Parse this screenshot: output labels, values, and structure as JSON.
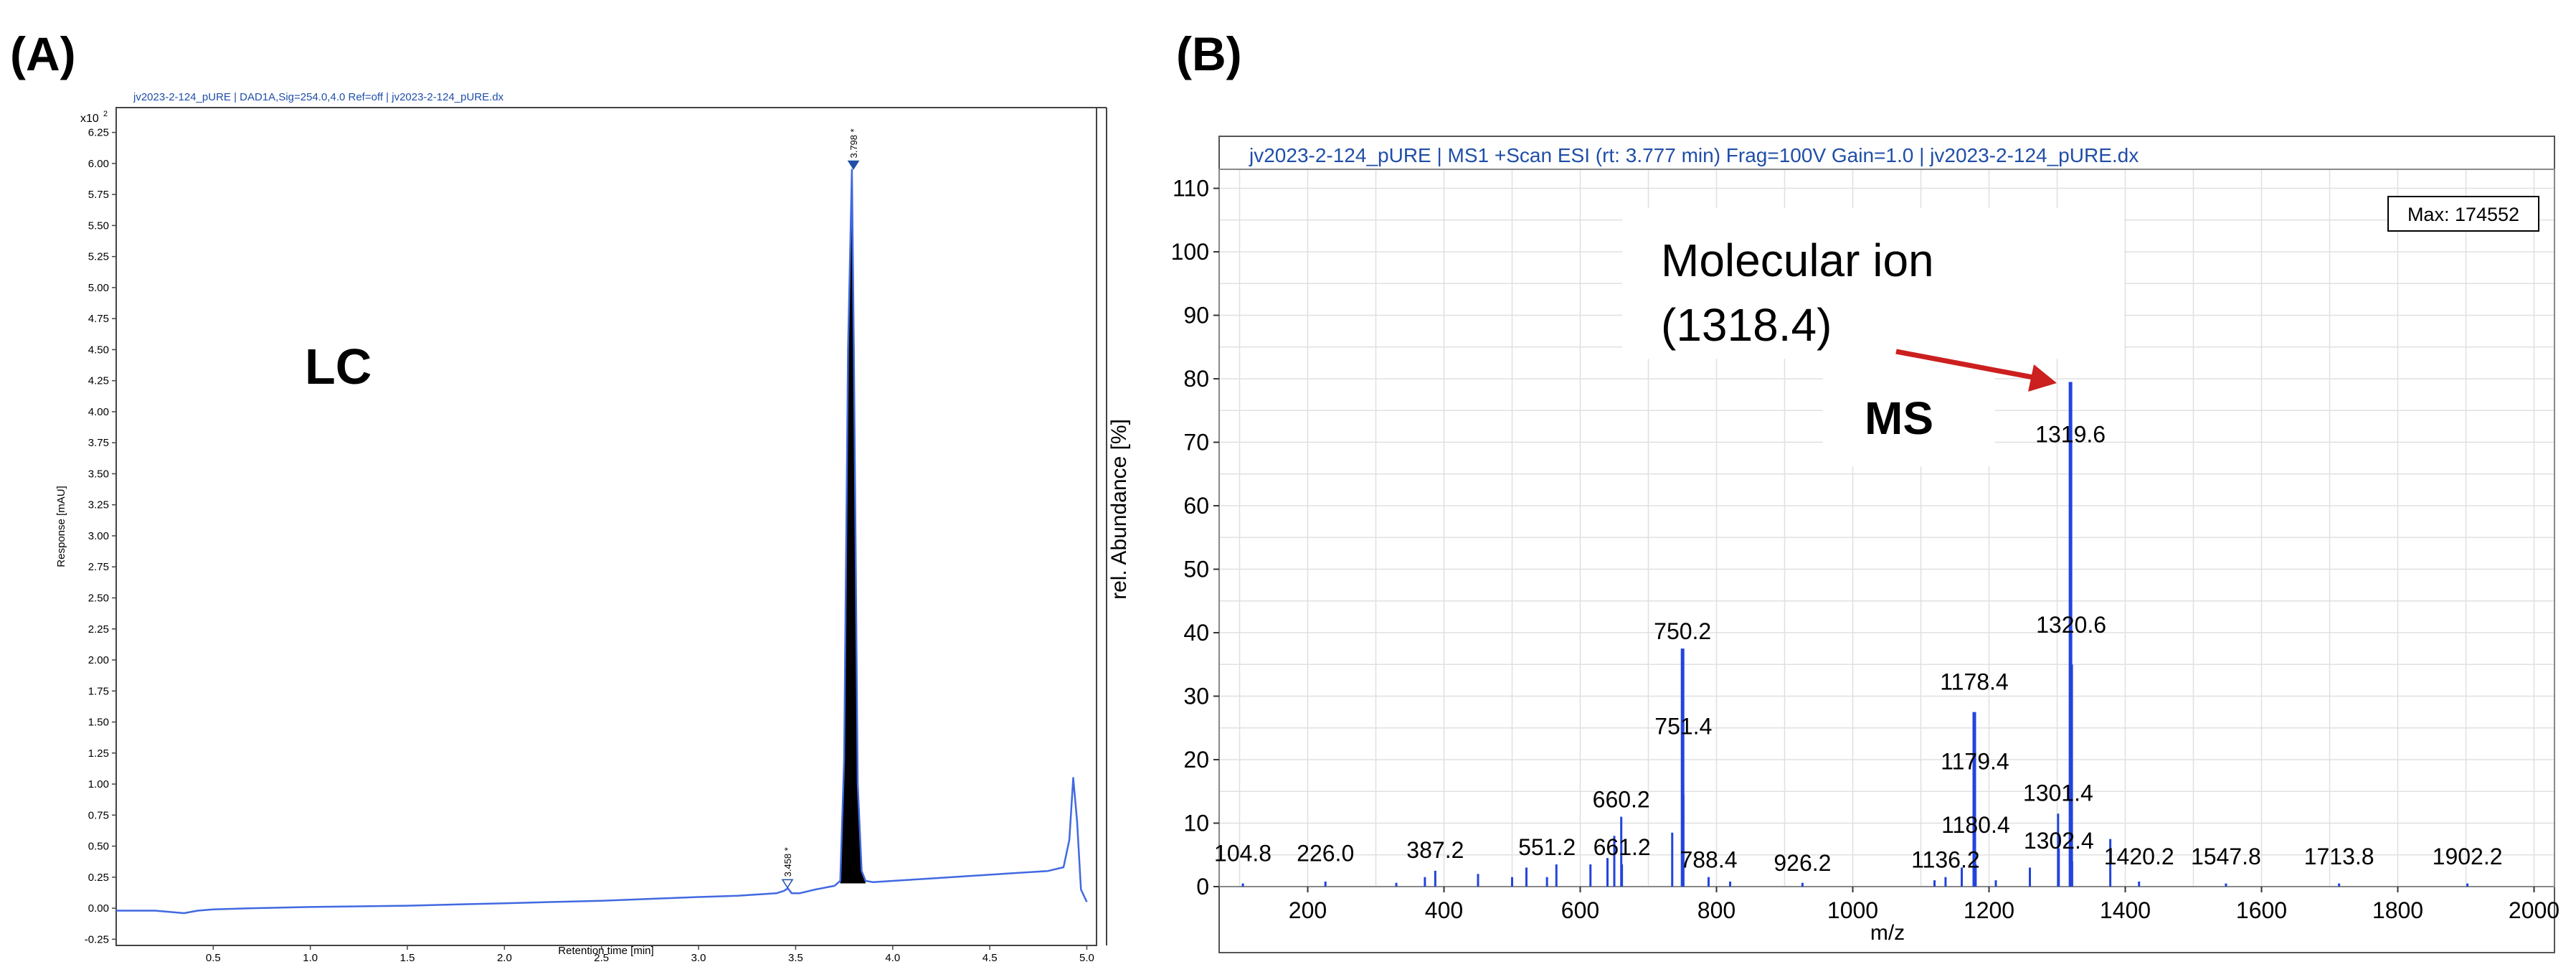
{
  "panels": {
    "a": {
      "label": "(A)",
      "header": "jv2023-2-124_pURE | DAD1A,Sig=254.0,4.0 Ref=off | jv2023-2-124_pURE.dx",
      "multiplier": "x10",
      "multiplier_exp": "2",
      "technique": "LC",
      "peak_labels": [
        "3.798 *",
        "3.458 *"
      ]
    },
    "b": {
      "label": "(B)",
      "header": "jv2023-2-124_pURE | MS1 +Scan ESI (rt: 3.777 min) Frag=100V Gain=1.0 | jv2023-2-124_pURE.dx",
      "max_label": "Max: 174552",
      "annotation_line1": "Molecular ion",
      "annotation_line2": "(1318.4)",
      "technique": "MS"
    }
  },
  "colors": {
    "lc_trace": "#4169e1",
    "peak_fill": "#000000",
    "header_text": "#1f4ea8",
    "ms_bars": "#2244dd",
    "arrow": "#cc1f1f",
    "grid": "#e0e0e0"
  },
  "chart_data": [
    {
      "type": "line",
      "title": "",
      "xlabel": "Retention time [min]",
      "ylabel": "Response [mAU]",
      "xlim": [
        0,
        5.05
      ],
      "ylim": [
        -0.3,
        6.45
      ],
      "grid": false,
      "x_ticks": [
        0.5,
        1.0,
        1.5,
        2.0,
        2.5,
        3.0,
        3.5,
        4.0,
        4.5,
        5.0
      ],
      "x_tick_labels": [
        "0.5",
        "1.0",
        "1.5",
        "2.0",
        "2.5",
        "3.0",
        "3.5",
        "4.0",
        "4.5",
        "5.0"
      ],
      "y_ticks": [
        -0.25,
        0,
        0.25,
        0.5,
        0.75,
        1.0,
        1.25,
        1.5,
        1.75,
        2.0,
        2.25,
        2.5,
        2.75,
        3.0,
        3.25,
        3.5,
        3.75,
        4.0,
        4.25,
        4.5,
        4.75,
        5.0,
        5.25,
        5.5,
        5.75,
        6.0,
        6.25
      ],
      "y_tick_labels": [
        "-0.25",
        "0.00",
        "0.25",
        "0.50",
        "0.75",
        "1.00",
        "1.25",
        "1.50",
        "1.75",
        "2.00",
        "2.25",
        "2.50",
        "2.75",
        "3.00",
        "3.25",
        "3.50",
        "3.75",
        "4.00",
        "4.25",
        "4.50",
        "4.75",
        "5.00",
        "5.25",
        "5.50",
        "5.75",
        "6.00",
        "6.25"
      ],
      "series": [
        {
          "x": [
            0.0,
            0.2,
            0.35,
            0.42,
            0.5,
            0.7,
            1.0,
            1.5,
            2.0,
            2.5,
            3.0,
            3.2,
            3.4,
            3.44,
            3.46,
            3.48,
            3.52,
            3.6,
            3.7,
            3.73,
            3.75,
            3.77,
            3.79,
            3.8,
            3.82,
            3.84,
            3.86,
            3.9,
            4.0,
            4.2,
            4.4,
            4.6,
            4.8,
            4.88,
            4.91,
            4.93,
            4.95,
            4.97,
            5.0
          ],
          "y": [
            -0.02,
            -0.02,
            -0.04,
            -0.02,
            -0.01,
            0.0,
            0.01,
            0.02,
            0.04,
            0.06,
            0.09,
            0.1,
            0.12,
            0.14,
            0.16,
            0.12,
            0.12,
            0.15,
            0.18,
            0.22,
            1.2,
            4.5,
            5.95,
            4.5,
            1.0,
            0.3,
            0.22,
            0.21,
            0.22,
            0.24,
            0.26,
            0.28,
            0.3,
            0.33,
            0.55,
            1.05,
            0.7,
            0.15,
            0.05
          ]
        }
      ],
      "peaks": [
        {
          "x": 3.798,
          "y": 5.95,
          "label": "3.798 *"
        },
        {
          "x": 3.458,
          "y": 0.16,
          "label": "3.458 *"
        }
      ]
    },
    {
      "type": "bar",
      "title": "",
      "xlabel": "m/z",
      "ylabel": "rel. Abundance [%]",
      "xlim": [
        70,
        2030
      ],
      "ylim": [
        0,
        113
      ],
      "grid": true,
      "x_ticks": [
        200,
        400,
        600,
        800,
        1000,
        1200,
        1400,
        1600,
        1800,
        2000
      ],
      "y_ticks": [
        0,
        10,
        20,
        30,
        40,
        50,
        60,
        70,
        80,
        90,
        100,
        110
      ],
      "bars": [
        {
          "x": 104.8,
          "y": 0.5
        },
        {
          "x": 226.0,
          "y": 0.8
        },
        {
          "x": 330,
          "y": 0.6
        },
        {
          "x": 372,
          "y": 1.5
        },
        {
          "x": 387.2,
          "y": 2.5
        },
        {
          "x": 450,
          "y": 2.0
        },
        {
          "x": 500,
          "y": 1.5
        },
        {
          "x": 521,
          "y": 3.0
        },
        {
          "x": 551.2,
          "y": 1.5
        },
        {
          "x": 565,
          "y": 3.5
        },
        {
          "x": 615,
          "y": 3.5
        },
        {
          "x": 640,
          "y": 4.5
        },
        {
          "x": 650,
          "y": 8.0
        },
        {
          "x": 660.2,
          "y": 11.0
        },
        {
          "x": 661.2,
          "y": 3.5
        },
        {
          "x": 735,
          "y": 8.5
        },
        {
          "x": 750.2,
          "y": 37.5
        },
        {
          "x": 751.4,
          "y": 14.5
        },
        {
          "x": 788.4,
          "y": 1.5
        },
        {
          "x": 820,
          "y": 0.8
        },
        {
          "x": 926.2,
          "y": 0.6
        },
        {
          "x": 1120,
          "y": 1.0
        },
        {
          "x": 1136.2,
          "y": 1.5
        },
        {
          "x": 1160,
          "y": 3.0
        },
        {
          "x": 1178.4,
          "y": 27.5
        },
        {
          "x": 1179.4,
          "y": 11.0
        },
        {
          "x": 1180.4,
          "y": 3.5
        },
        {
          "x": 1210,
          "y": 1.0
        },
        {
          "x": 1260,
          "y": 3.0
        },
        {
          "x": 1301.4,
          "y": 11.5
        },
        {
          "x": 1302.4,
          "y": 6.0
        },
        {
          "x": 1319.6,
          "y": 79.5
        },
        {
          "x": 1320.6,
          "y": 35.0
        },
        {
          "x": 1322,
          "y": 4.0
        },
        {
          "x": 1378,
          "y": 7.5
        },
        {
          "x": 1420.2,
          "y": 0.8
        },
        {
          "x": 1547.8,
          "y": 0.5
        },
        {
          "x": 1713.8,
          "y": 0.5
        },
        {
          "x": 1902.2,
          "y": 0.5
        }
      ],
      "labels": [
        {
          "text": "104.8",
          "x": 104.8,
          "y": 4
        },
        {
          "text": "226.0",
          "x": 226.0,
          "y": 4
        },
        {
          "text": "387.2",
          "x": 387.2,
          "y": 4.5
        },
        {
          "text": "551.2",
          "x": 551.2,
          "y": 5
        },
        {
          "text": "661.2",
          "x": 661.2,
          "y": 5
        },
        {
          "text": "660.2",
          "x": 660.2,
          "y": 12.5
        },
        {
          "text": "750.2",
          "x": 750.2,
          "y": 39
        },
        {
          "text": "751.4",
          "x": 751.4,
          "y": 24
        },
        {
          "text": "788.4",
          "x": 788.4,
          "y": 3
        },
        {
          "text": "926.2",
          "x": 926.2,
          "y": 2.5
        },
        {
          "text": "1136.2",
          "x": 1136.2,
          "y": 3
        },
        {
          "text": "1178.4",
          "x": 1178.4,
          "y": 31
        },
        {
          "text": "1179.4",
          "x": 1179.4,
          "y": 18.5
        },
        {
          "text": "1180.4",
          "x": 1180.4,
          "y": 8.5
        },
        {
          "text": "1301.4",
          "x": 1301.4,
          "y": 13.5
        },
        {
          "text": "1302.4",
          "x": 1302.4,
          "y": 6
        },
        {
          "text": "1319.6",
          "x": 1319.6,
          "y": 70
        },
        {
          "text": "1320.6",
          "x": 1320.6,
          "y": 40
        },
        {
          "text": "1420.2",
          "x": 1420.2,
          "y": 3.5
        },
        {
          "text": "1547.8",
          "x": 1547.8,
          "y": 3.5
        },
        {
          "text": "1713.8",
          "x": 1713.8,
          "y": 3.5
        },
        {
          "text": "1902.2",
          "x": 1902.2,
          "y": 3.5
        }
      ]
    }
  ]
}
